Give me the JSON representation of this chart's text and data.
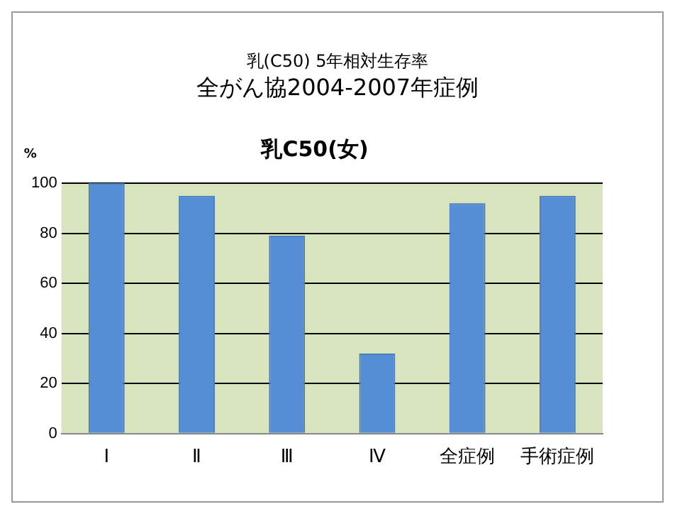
{
  "chart_data": {
    "type": "bar",
    "title": "乳(C50) 5年相対生存率",
    "subtitle": "全がん協2004-2007年症例",
    "annotations": [
      "乳C50(女)"
    ],
    "ylabel": "%",
    "categories": [
      "Ⅰ",
      "Ⅱ",
      "Ⅲ",
      "Ⅳ",
      "全症例",
      "手術症例"
    ],
    "values": [
      100,
      95,
      79,
      32,
      92,
      95
    ],
    "color": "#558ed5",
    "ylim": [
      0,
      100
    ],
    "yticks": [
      0,
      20,
      40,
      60,
      80,
      100
    ],
    "grid": "y",
    "legend": false
  }
}
